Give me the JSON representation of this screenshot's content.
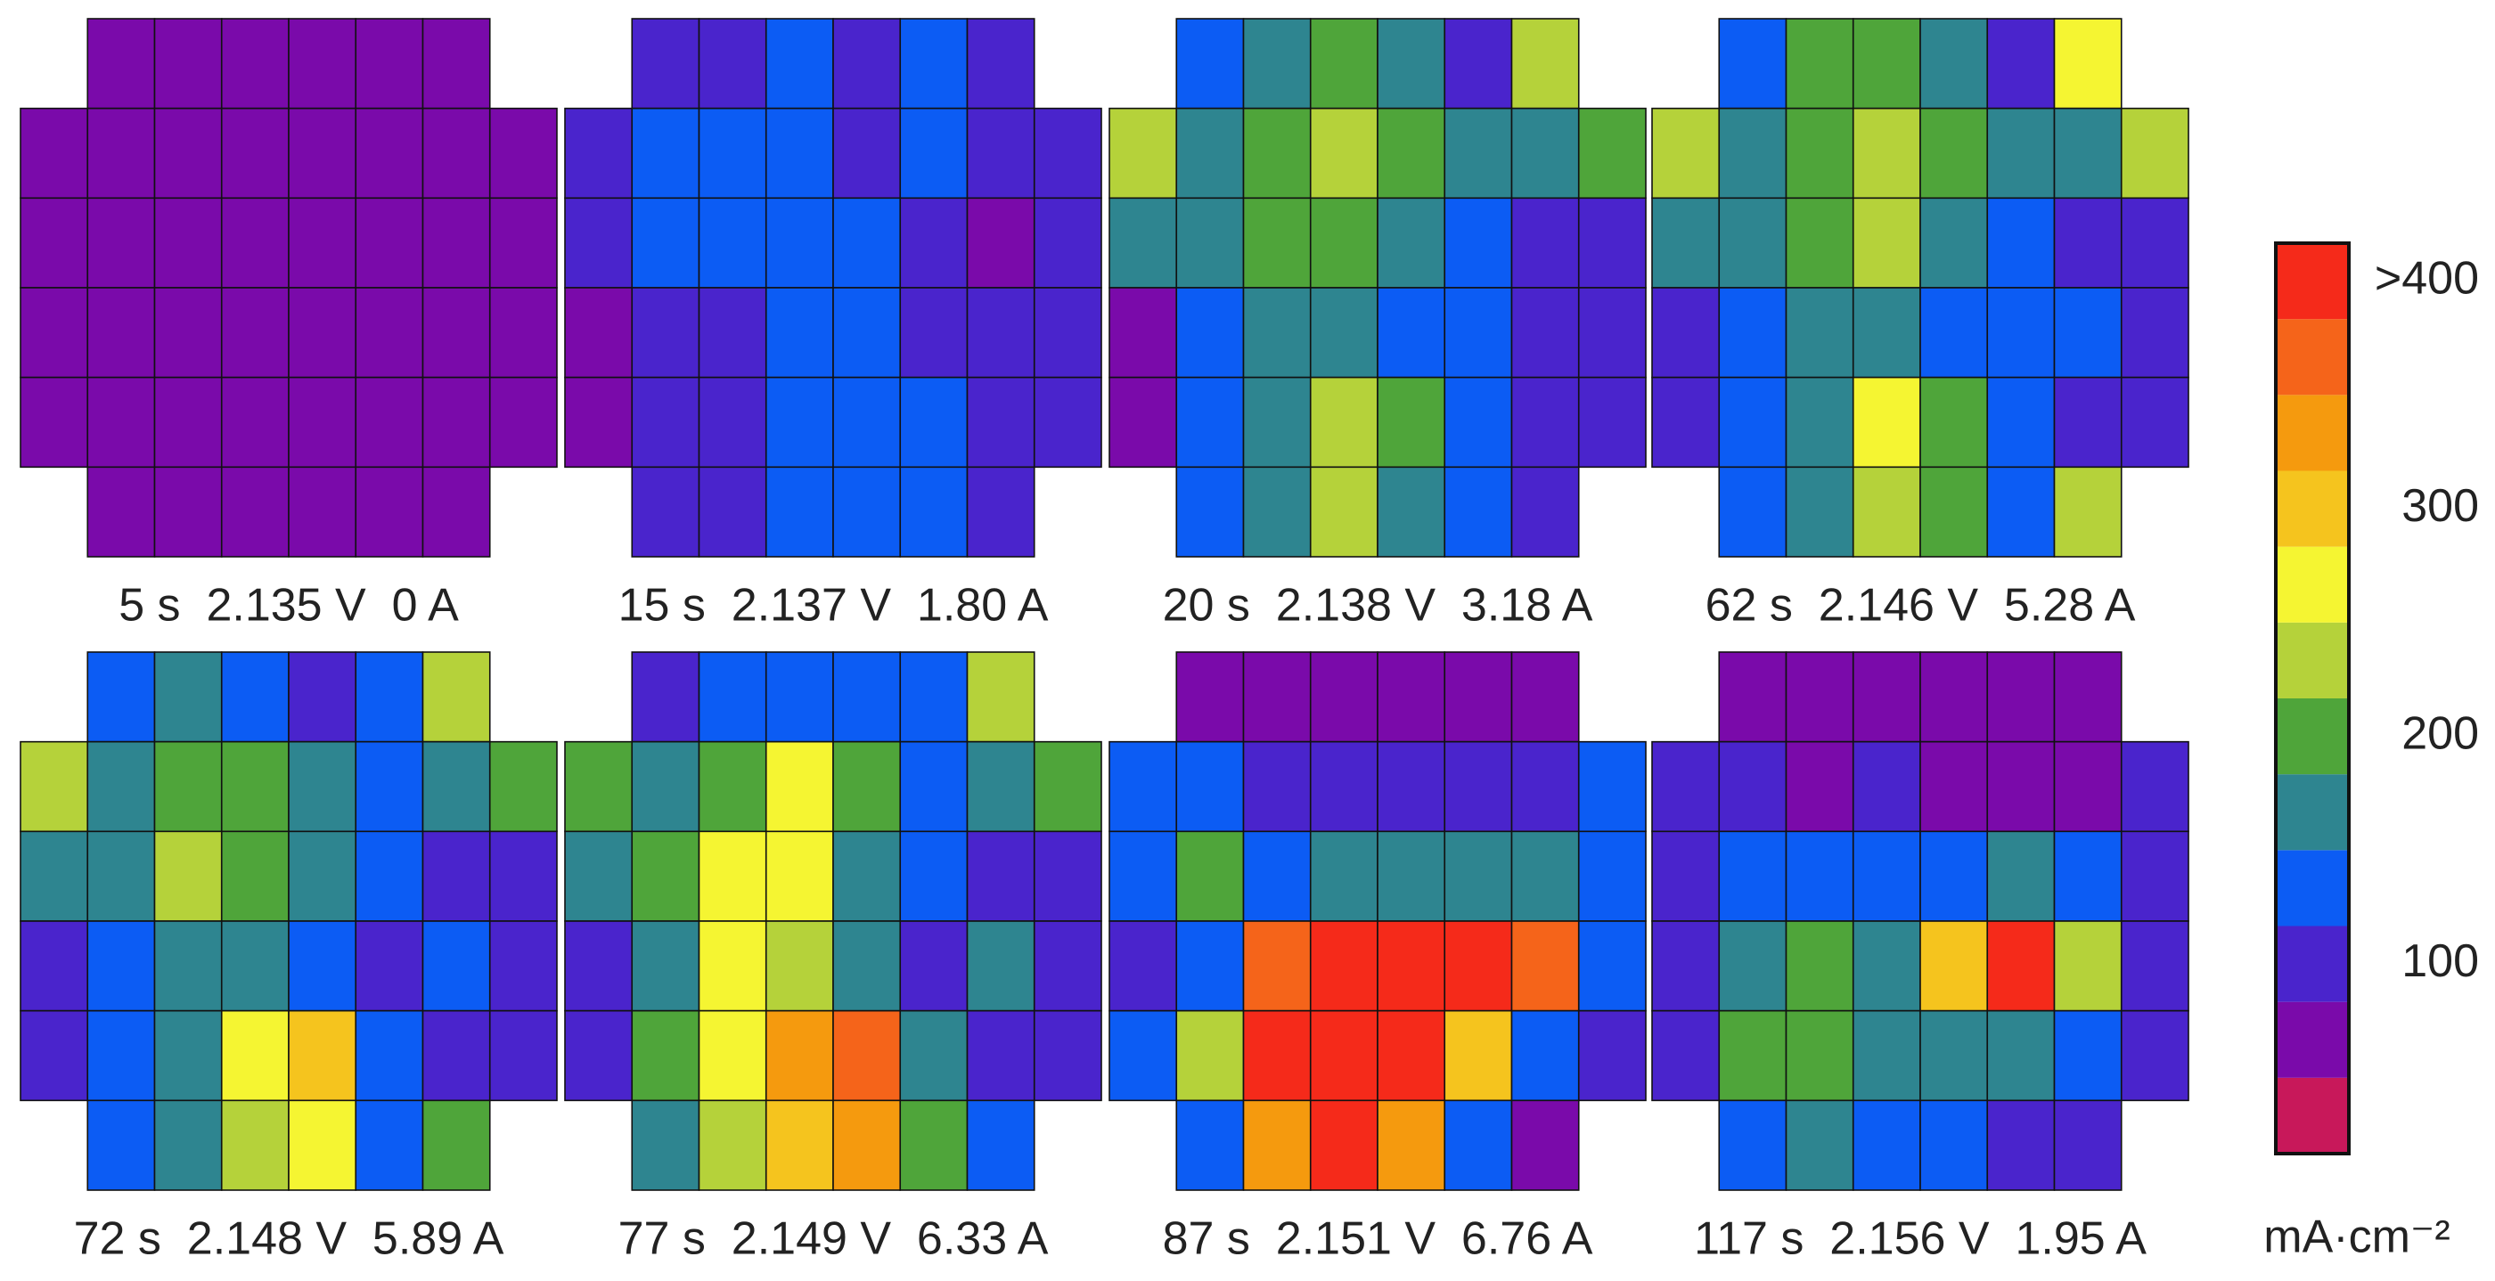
{
  "chart_data": {
    "type": "heatmap",
    "panels": [
      {
        "label": "5 s  2.135 V  0 A",
        "values": [
          [
            null,
            67,
            67,
            67,
            67,
            67,
            67,
            null
          ],
          [
            67,
            67,
            67,
            67,
            67,
            67,
            67,
            67
          ],
          [
            67,
            67,
            67,
            67,
            67,
            67,
            67,
            67
          ],
          [
            67,
            67,
            67,
            67,
            67,
            67,
            67,
            67
          ],
          [
            67,
            67,
            67,
            67,
            67,
            67,
            67,
            67
          ],
          [
            null,
            67,
            67,
            67,
            67,
            67,
            67,
            null
          ]
        ]
      },
      {
        "label": "15 s  2.137 V  1.80 A",
        "values": [
          [
            null,
            100,
            100,
            133,
            100,
            133,
            100,
            null
          ],
          [
            100,
            133,
            133,
            133,
            100,
            133,
            100,
            100
          ],
          [
            100,
            133,
            133,
            133,
            133,
            100,
            67,
            100
          ],
          [
            67,
            100,
            100,
            133,
            133,
            100,
            100,
            100
          ],
          [
            67,
            100,
            100,
            133,
            133,
            133,
            100,
            100
          ],
          [
            null,
            100,
            100,
            133,
            133,
            133,
            100,
            null
          ]
        ]
      },
      {
        "label": "20 s  2.138 V  3.18 A",
        "values": [
          [
            null,
            133,
            167,
            200,
            167,
            100,
            233,
            null
          ],
          [
            233,
            167,
            200,
            233,
            200,
            167,
            167,
            200
          ],
          [
            167,
            167,
            200,
            200,
            167,
            133,
            100,
            100
          ],
          [
            67,
            133,
            167,
            167,
            133,
            133,
            100,
            100
          ],
          [
            67,
            133,
            167,
            233,
            200,
            133,
            100,
            100
          ],
          [
            null,
            133,
            167,
            233,
            167,
            133,
            100,
            null
          ]
        ]
      },
      {
        "label": "62 s  2.146 V  5.28 A",
        "values": [
          [
            null,
            133,
            200,
            200,
            167,
            100,
            267,
            null
          ],
          [
            233,
            167,
            200,
            233,
            200,
            167,
            167,
            233
          ],
          [
            167,
            167,
            200,
            233,
            167,
            133,
            100,
            100
          ],
          [
            100,
            133,
            167,
            167,
            133,
            133,
            133,
            100
          ],
          [
            100,
            133,
            167,
            267,
            200,
            133,
            100,
            100
          ],
          [
            null,
            133,
            167,
            233,
            200,
            133,
            233,
            null
          ]
        ]
      },
      {
        "label": "72 s  2.148 V  5.89 A",
        "values": [
          [
            null,
            133,
            167,
            133,
            100,
            133,
            233,
            null
          ],
          [
            233,
            167,
            200,
            200,
            167,
            133,
            167,
            200
          ],
          [
            167,
            167,
            233,
            200,
            167,
            133,
            100,
            100
          ],
          [
            100,
            133,
            167,
            167,
            133,
            100,
            133,
            100
          ],
          [
            100,
            133,
            167,
            267,
            300,
            133,
            100,
            100
          ],
          [
            null,
            133,
            167,
            233,
            267,
            133,
            200,
            null
          ]
        ]
      },
      {
        "label": "77 s  2.149 V  6.33 A",
        "values": [
          [
            null,
            100,
            133,
            133,
            133,
            133,
            233,
            null
          ],
          [
            200,
            167,
            200,
            267,
            200,
            133,
            167,
            200
          ],
          [
            167,
            200,
            267,
            267,
            167,
            133,
            100,
            100
          ],
          [
            100,
            167,
            267,
            233,
            167,
            100,
            167,
            100
          ],
          [
            100,
            200,
            267,
            333,
            367,
            167,
            100,
            100
          ],
          [
            null,
            167,
            233,
            300,
            333,
            200,
            133,
            null
          ]
        ]
      },
      {
        "label": "87 s  2.151 V  6.76 A",
        "values": [
          [
            null,
            67,
            67,
            67,
            67,
            67,
            67,
            null
          ],
          [
            133,
            133,
            100,
            100,
            100,
            100,
            100,
            133
          ],
          [
            133,
            200,
            133,
            167,
            167,
            167,
            167,
            133
          ],
          [
            100,
            133,
            367,
            400,
            400,
            400,
            367,
            133
          ],
          [
            133,
            233,
            400,
            400,
            400,
            300,
            133,
            100
          ],
          [
            null,
            133,
            333,
            400,
            333,
            133,
            67,
            null
          ]
        ]
      },
      {
        "label": "117 s  2.156 V  1.95 A",
        "values": [
          [
            null,
            67,
            67,
            67,
            67,
            67,
            67,
            null
          ],
          [
            100,
            100,
            67,
            100,
            67,
            67,
            67,
            100
          ],
          [
            100,
            133,
            133,
            133,
            133,
            167,
            133,
            100
          ],
          [
            100,
            167,
            200,
            167,
            300,
            400,
            233,
            100
          ],
          [
            100,
            200,
            200,
            167,
            167,
            167,
            133,
            100
          ],
          [
            null,
            133,
            167,
            133,
            133,
            100,
            100,
            null
          ]
        ]
      }
    ],
    "colorbar": {
      "label": "mA·cm⁻²",
      "lim": [
        16.7,
        416.7
      ],
      "ticks": [
        100,
        200,
        300,
        {
          "value": 400,
          "label": ">400"
        }
      ],
      "colors": [
        "#c8185a",
        "#7a0aaa",
        "#4a24cc",
        "#0c5cf4",
        "#2e8590",
        "#4fa53a",
        "#b5d23a",
        "#f5f532",
        "#f5c41e",
        "#f59a0e",
        "#f5641a",
        "#f52a1a"
      ]
    }
  }
}
